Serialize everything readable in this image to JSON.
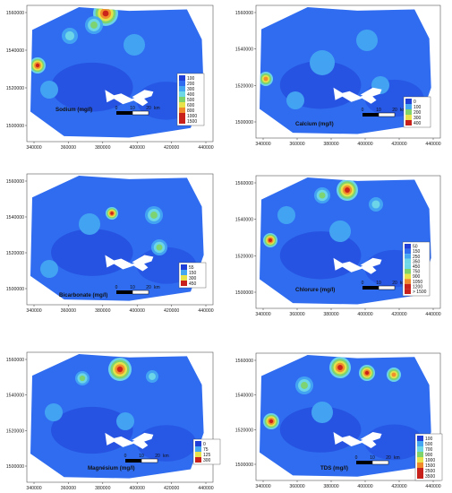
{
  "colors": {
    "deep_blue": "#1f3fd6",
    "blue": "#2f6cf0",
    "sky": "#45a7f2",
    "cyan": "#6fd8e6",
    "green": "#7ed46a",
    "yellow": "#e8e34a",
    "orange": "#f08a2a",
    "red": "#c8201a"
  },
  "x_ticks": [
    "340000",
    "360000",
    "380000",
    "400000",
    "420000",
    "440000"
  ],
  "scale_labels": [
    "0",
    "10",
    "20"
  ],
  "scale_unit": "km",
  "panels": [
    {
      "id": "sodium",
      "title": "Sodium (mg/l)",
      "y_ticks": [
        "1560000",
        "1540000",
        "1520000",
        "1500000"
      ],
      "legend": [
        "100",
        "200",
        "300",
        "400",
        "500",
        "600",
        "800",
        "1000",
        "1500"
      ]
    },
    {
      "id": "calcium",
      "title": "Calcium (mg/l)",
      "y_ticks": [
        "1560000",
        "1540000",
        "1520000",
        "1500000"
      ],
      "legend": [
        "0",
        "100",
        "200",
        "300",
        "400"
      ]
    },
    {
      "id": "bicarbonate",
      "title": "Bicarbonate (mg/l)",
      "y_ticks": [
        "1560000",
        "1540000",
        "1520000",
        "1500000"
      ],
      "legend": [
        "55",
        "150",
        "300",
        "450"
      ]
    },
    {
      "id": "chlorure",
      "title": "Chlorure (mg/l)",
      "y_ticks": [
        "1560000",
        "1540000",
        "1520000",
        "1500000"
      ],
      "legend": [
        "50",
        "150",
        "250",
        "350",
        "450",
        "750",
        "900",
        "1050",
        "1200",
        "> 1500"
      ]
    },
    {
      "id": "magnesium",
      "title": "Magnésium (mg/l)",
      "y_ticks": [
        "1560000",
        "1540000",
        "1520000",
        "1500000"
      ],
      "legend": [
        "0",
        "75",
        "125",
        "300"
      ]
    },
    {
      "id": "tds",
      "title": "TDS (mg/l)",
      "y_ticks": [
        "1560000",
        "1540000",
        "1520000",
        "1500000"
      ],
      "legend": [
        "100",
        "500",
        "700",
        "900",
        "1000",
        "1500",
        "2500",
        "3500"
      ]
    }
  ]
}
